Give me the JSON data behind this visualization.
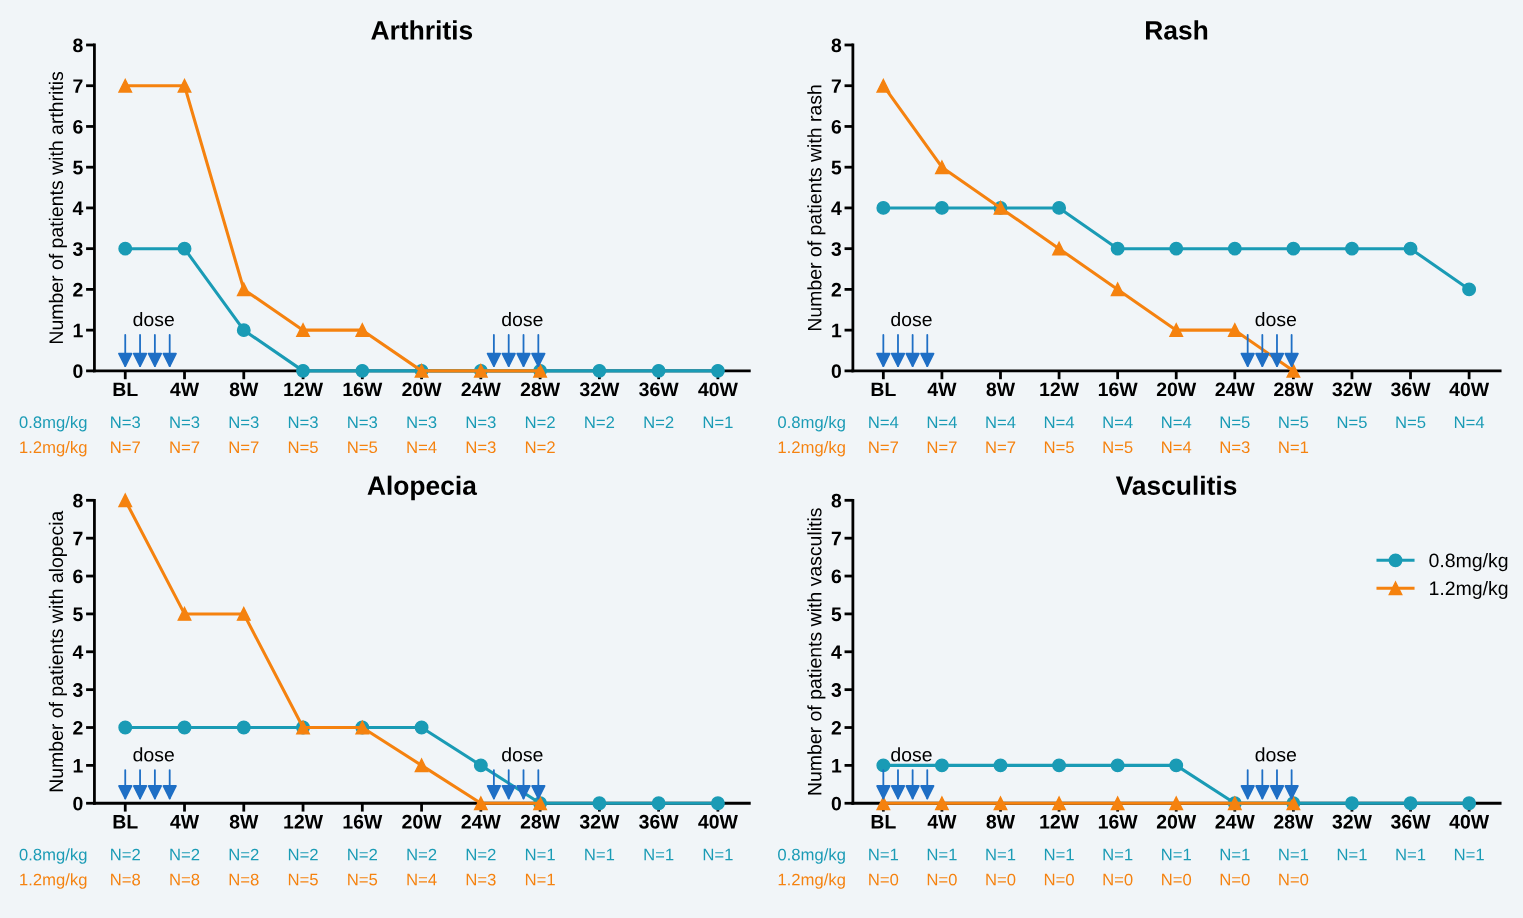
{
  "chart_data": [
    {
      "type": "line",
      "title": "Arthritis",
      "ylabel": "Number of patients with arthritis",
      "categories": [
        "BL",
        "4W",
        "8W",
        "12W",
        "16W",
        "20W",
        "24W",
        "28W",
        "32W",
        "36W",
        "40W"
      ],
      "ylim": [
        0,
        8
      ],
      "yticks": [
        0,
        1,
        2,
        3,
        4,
        5,
        6,
        7,
        8
      ],
      "grid": false,
      "legend": false,
      "series": [
        {
          "color": "#1a9bb5",
          "marker": "circle",
          "values": [
            3,
            3,
            1,
            0,
            0,
            0,
            0,
            0,
            0,
            0,
            0
          ]
        },
        {
          "color": "#f5820f",
          "marker": "triangle",
          "values": [
            7,
            7,
            2,
            1,
            1,
            0,
            0,
            0,
            null,
            null,
            null
          ]
        }
      ],
      "annotations": [
        "0.8mg/kg",
        "N=3",
        "N=3",
        "N=3",
        "N=3",
        "N=3",
        "N=3",
        "N=3",
        "N=2",
        "N=2",
        "N=2",
        "N=1",
        "1.2mg/kg",
        "N=7",
        "N=7",
        "N=7",
        "N=5",
        "N=5",
        "N=4",
        "N=3",
        "N=2",
        "dose",
        "dose"
      ]
    },
    {
      "type": "line",
      "title": "Rash",
      "ylabel": "Number of patients with rash",
      "categories": [
        "BL",
        "4W",
        "8W",
        "12W",
        "16W",
        "20W",
        "24W",
        "28W",
        "32W",
        "36W",
        "40W"
      ],
      "ylim": [
        0,
        8
      ],
      "yticks": [
        0,
        1,
        2,
        3,
        4,
        5,
        6,
        7,
        8
      ],
      "grid": false,
      "legend": false,
      "series": [
        {
          "color": "#1a9bb5",
          "marker": "circle",
          "values": [
            4,
            4,
            4,
            4,
            3,
            3,
            3,
            3,
            3,
            3,
            2
          ]
        },
        {
          "color": "#f5820f",
          "marker": "triangle",
          "values": [
            7,
            5,
            4,
            3,
            2,
            1,
            1,
            0,
            null,
            null,
            null
          ]
        }
      ],
      "annotations": [
        "0.8mg/kg",
        "N=4",
        "N=4",
        "N=4",
        "N=4",
        "N=4",
        "N=4",
        "N=5",
        "N=5",
        "N=5",
        "N=5",
        "N=4",
        "1.2mg/kg",
        "N=7",
        "N=7",
        "N=7",
        "N=5",
        "N=5",
        "N=4",
        "N=3",
        "N=1",
        "dose",
        "dose"
      ]
    },
    {
      "type": "line",
      "title": "Alopecia",
      "ylabel": "Number of patients with alopecia",
      "categories": [
        "BL",
        "4W",
        "8W",
        "12W",
        "16W",
        "20W",
        "24W",
        "28W",
        "32W",
        "36W",
        "40W"
      ],
      "ylim": [
        0,
        8
      ],
      "yticks": [
        0,
        1,
        2,
        3,
        4,
        5,
        6,
        7,
        8
      ],
      "grid": false,
      "legend": false,
      "series": [
        {
          "color": "#1a9bb5",
          "marker": "circle",
          "values": [
            2,
            2,
            2,
            2,
            2,
            2,
            1,
            0,
            0,
            0,
            0
          ]
        },
        {
          "color": "#f5820f",
          "marker": "triangle",
          "values": [
            8,
            5,
            5,
            2,
            2,
            1,
            0,
            0,
            null,
            null,
            null
          ]
        }
      ],
      "annotations": [
        "0.8mg/kg",
        "N=2",
        "N=2",
        "N=2",
        "N=2",
        "N=2",
        "N=2",
        "N=2",
        "N=1",
        "N=1",
        "N=1",
        "N=1",
        "1.2mg/kg",
        "N=8",
        "N=8",
        "N=8",
        "N=5",
        "N=5",
        "N=4",
        "N=3",
        "N=1",
        "dose",
        "dose"
      ]
    },
    {
      "type": "line",
      "title": "Vasculitis",
      "ylabel": "Number of patients with vasculitis",
      "categories": [
        "BL",
        "4W",
        "8W",
        "12W",
        "16W",
        "20W",
        "24W",
        "28W",
        "32W",
        "36W",
        "40W"
      ],
      "ylim": [
        0,
        8
      ],
      "yticks": [
        0,
        1,
        2,
        3,
        4,
        5,
        6,
        7,
        8
      ],
      "grid": false,
      "legend": "right",
      "series": [
        {
          "name": "0.8mg/kg",
          "color": "#1a9bb5",
          "marker": "circle",
          "values": [
            1,
            1,
            1,
            1,
            1,
            1,
            0,
            0,
            0,
            0,
            0
          ]
        },
        {
          "name": "1.2mg/kg",
          "color": "#f5820f",
          "marker": "triangle",
          "values": [
            0,
            0,
            0,
            0,
            0,
            0,
            0,
            0,
            null,
            null,
            null
          ]
        }
      ],
      "annotations": [
        "0.8mg/kg",
        "N=1",
        "N=1",
        "N=1",
        "N=1",
        "N=1",
        "N=1",
        "N=1",
        "N=1",
        "N=1",
        "N=1",
        "N=1",
        "1.2mg/kg",
        "N=0",
        "N=0",
        "N=0",
        "N=0",
        "N=0",
        "N=0",
        "N=0",
        "N=0",
        "dose",
        "dose"
      ]
    }
  ]
}
